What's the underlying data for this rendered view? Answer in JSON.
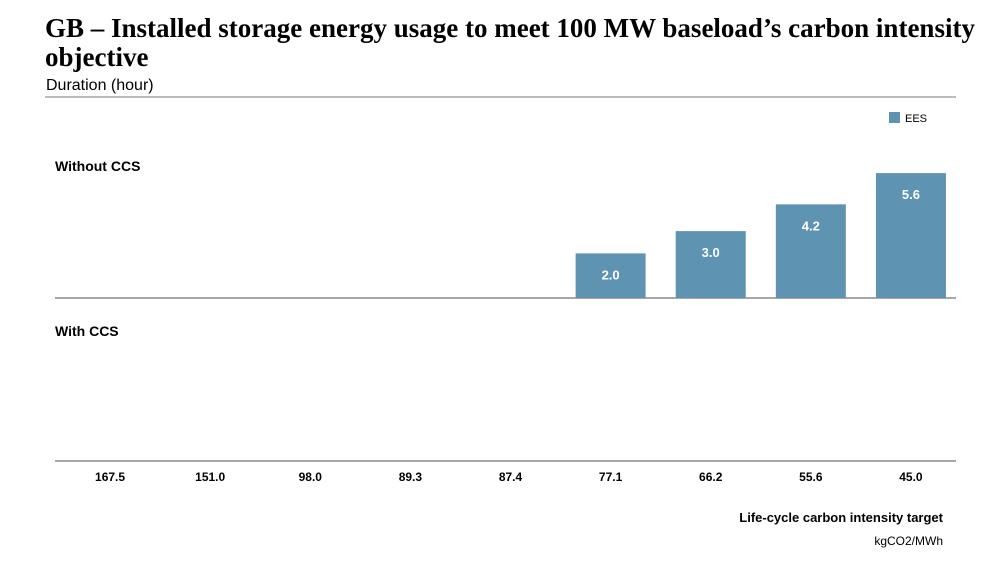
{
  "title": "GB – Installed storage energy usage to meet 100 MW baseload’s carbon intensity objective",
  "subtitle": "Duration (hour)",
  "chart_data": {
    "type": "bar",
    "title": "GB – Installed storage energy usage to meet 100 MW baseload’s carbon intensity objective",
    "ylabel": "Duration (hour)",
    "xlabel": "Life-cycle carbon intensity target",
    "xunit": "kgCO2/MWh",
    "categories": [
      "167.5",
      "151.0",
      "98.0",
      "89.3",
      "87.4",
      "77.1",
      "66.2",
      "55.6",
      "45.0"
    ],
    "panels": [
      {
        "label": "Without CCS",
        "values": [
          0,
          0,
          0,
          0,
          0,
          2.0,
          3.0,
          4.2,
          5.6
        ],
        "value_labels": [
          "",
          "",
          "",
          "",
          "",
          "2.0",
          "3.0",
          "4.2",
          "5.6"
        ]
      },
      {
        "label": "With CCS",
        "values": [
          0,
          0,
          0,
          0,
          0,
          0,
          0,
          0,
          0
        ],
        "value_labels": [
          "",
          "",
          "",
          "",
          "",
          "",
          "",
          "",
          ""
        ]
      }
    ],
    "series": [
      {
        "name": "EES",
        "color": "#5f93b2"
      }
    ],
    "legend": "top-right",
    "grid": false
  }
}
